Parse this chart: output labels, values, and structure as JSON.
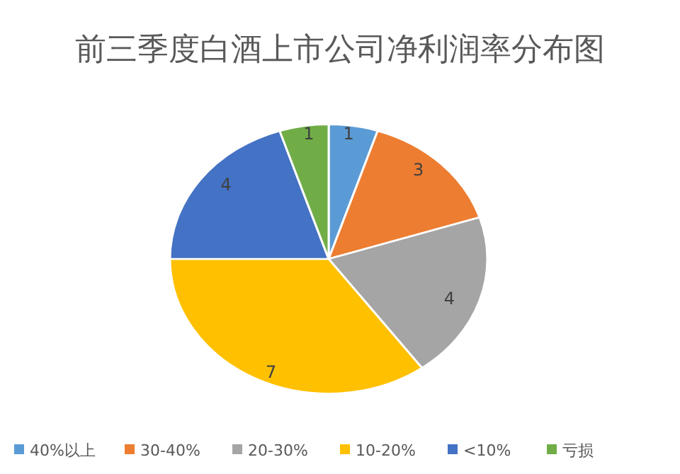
{
  "chart_data": {
    "type": "pie",
    "title": "前三季度白酒上市公司净利润率分布图",
    "categories": [
      "40%以上",
      "30-40%",
      "20-30%",
      "10-20%",
      "<10%",
      "亏损"
    ],
    "values": [
      1,
      3,
      4,
      7,
      4,
      1
    ],
    "colors": [
      "#5b9bd5",
      "#ed7d31",
      "#a5a5a5",
      "#ffc000",
      "#4472c4",
      "#70ad47"
    ],
    "data_labels": true,
    "legend": "bottom"
  }
}
